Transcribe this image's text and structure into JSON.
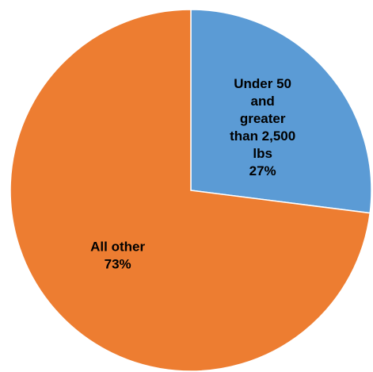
{
  "chart_data": {
    "type": "pie",
    "title": "",
    "slices": [
      {
        "label_lines": [
          "Under 50",
          "and",
          "greater",
          "than 2,500",
          "lbs",
          "27%"
        ],
        "value": 27,
        "color": "#5B9BD5"
      },
      {
        "label_lines": [
          "All other",
          "73%"
        ],
        "value": 73,
        "color": "#ED7D31"
      }
    ],
    "start_angle_deg": 0,
    "direction": "clockwise",
    "slice_border_color": "#ffffff"
  }
}
